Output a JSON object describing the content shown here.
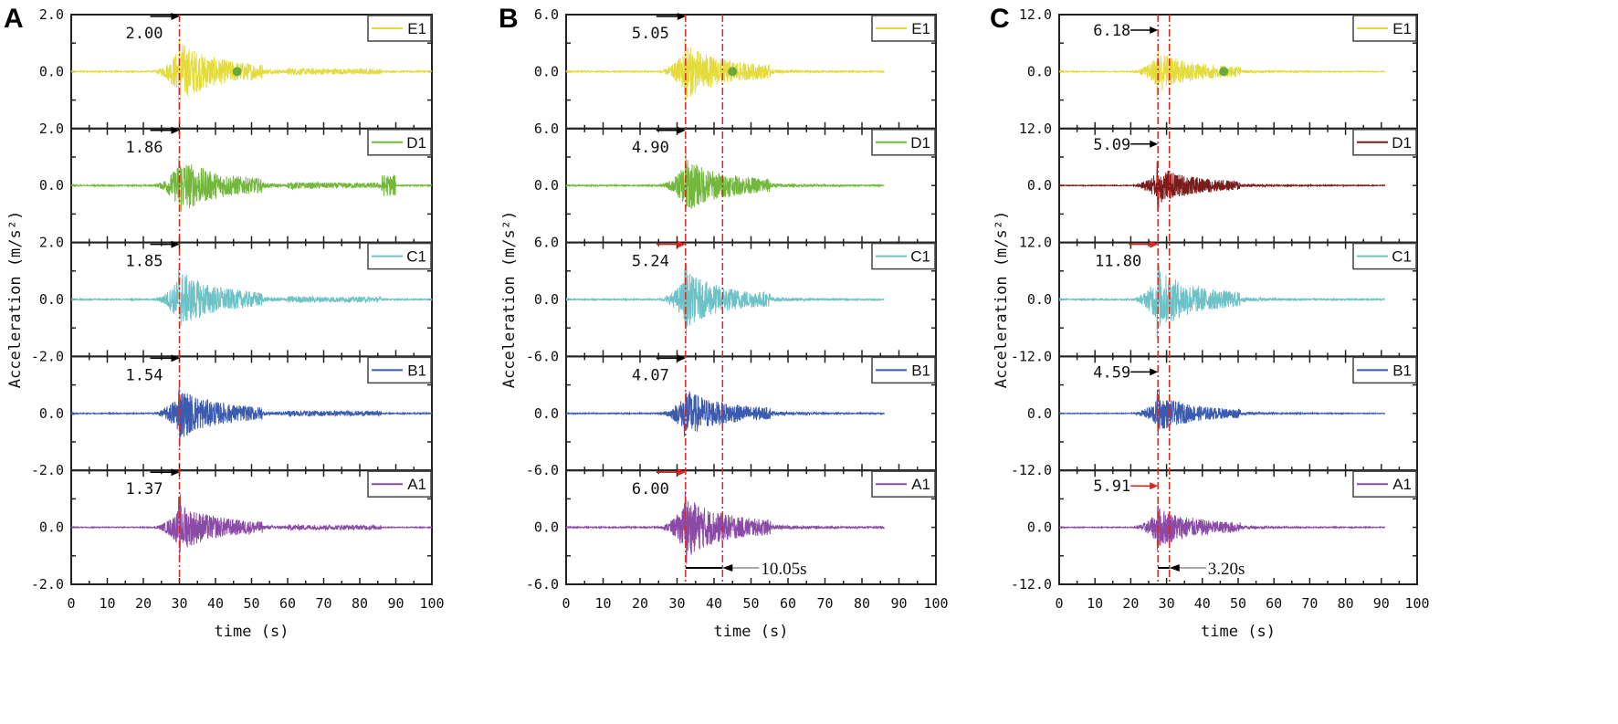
{
  "chart_data": [
    {
      "type": "line",
      "panel": "A",
      "xlabel": "time (s)",
      "ylabel": "Acceleration (m/s²)",
      "xlim": [
        0,
        100
      ],
      "xticks": [
        "0",
        "10",
        "20",
        "30",
        "40",
        "50",
        "60",
        "70",
        "80",
        "90",
        "100"
      ],
      "duration": 100,
      "arrival_lines": [
        30
      ],
      "duration_label": null,
      "ytick_labels": [
        "2.0",
        "0.0",
        "2.0",
        "0.0",
        "2.0",
        "0.0",
        "-2.0",
        "0.0",
        "-2.0",
        "0.0",
        "-2.0"
      ],
      "ymax": 2,
      "series": [
        {
          "name": "E1",
          "color": "#e3dc3c",
          "peak_label": "2.00",
          "peak": 2.0,
          "arrow_color": "#000000",
          "marker_time": 46
        },
        {
          "name": "D1",
          "color": "#72b83c",
          "peak_label": "1.86",
          "peak": 1.86,
          "arrow_color": "#000000"
        },
        {
          "name": "C1",
          "color": "#6cc2c6",
          "peak_label": "1.85",
          "peak": 1.85,
          "arrow_color": "#000000"
        },
        {
          "name": "B1",
          "color": "#3a5bb0",
          "peak_label": "1.54",
          "peak": 1.54,
          "arrow_color": "#000000"
        },
        {
          "name": "A1",
          "color": "#8a4aa6",
          "peak_label": "1.37",
          "peak": 1.37,
          "arrow_color": "#000000"
        }
      ]
    },
    {
      "type": "line",
      "panel": "B",
      "xlabel": "time (s)",
      "ylabel": "Acceleration (m/s²)",
      "xlim": [
        0,
        100
      ],
      "xticks": [
        "0",
        "10",
        "20",
        "30",
        "40",
        "50",
        "60",
        "70",
        "80",
        "90",
        "100"
      ],
      "duration": 86,
      "arrival_lines": [
        32.3,
        42.3
      ],
      "duration_label": "10.05s",
      "ytick_labels": [
        "6.0",
        "0.0",
        "6.0",
        "0.0",
        "6.0",
        "0.0",
        "-6.0",
        "0.0",
        "-6.0",
        "0.0",
        "-6.0"
      ],
      "ymax": 6,
      "series": [
        {
          "name": "E1",
          "color": "#e3dc3c",
          "peak_label": "5.05",
          "peak": 5.05,
          "arrow_color": "#000000",
          "marker_time": 45
        },
        {
          "name": "D1",
          "color": "#72b83c",
          "peak_label": "4.90",
          "peak": 4.9,
          "arrow_color": "#000000"
        },
        {
          "name": "C1",
          "color": "#6cc2c6",
          "peak_label": "5.24",
          "peak": 5.24,
          "arrow_color": "#e0241c"
        },
        {
          "name": "B1",
          "color": "#3a5bb0",
          "peak_label": "4.07",
          "peak": 4.07,
          "arrow_color": "#000000"
        },
        {
          "name": "A1",
          "color": "#8a4aa6",
          "peak_label": "6.00",
          "peak": 6.0,
          "arrow_color": "#e0241c"
        }
      ]
    },
    {
      "type": "line",
      "panel": "C",
      "xlabel": "time (s)",
      "ylabel": "Acceleration (m/s²)",
      "xlim": [
        0,
        100
      ],
      "xticks": [
        "0",
        "10",
        "20",
        "30",
        "40",
        "50",
        "60",
        "70",
        "80",
        "90",
        "100"
      ],
      "duration": 91,
      "arrival_lines": [
        27.6,
        30.8
      ],
      "duration_label": "3.20s",
      "ytick_labels": [
        "12.0",
        "0.0",
        "12.0",
        "0.0",
        "12.0",
        "0.0",
        "-12.0",
        "0.0",
        "-12.0",
        "0.0",
        "-12.0"
      ],
      "ymax": 12,
      "series": [
        {
          "name": "E1",
          "color": "#e3dc3c",
          "peak_label": "6.18",
          "peak": 6.18,
          "arrow_color": "#000000",
          "marker_time": 46
        },
        {
          "name": "D1",
          "color": "#7a1c1c",
          "peak_label": "5.09",
          "peak": 5.09,
          "arrow_color": "#000000"
        },
        {
          "name": "C1",
          "color": "#6cc2c6",
          "peak_label": "11.80",
          "peak": 11.8,
          "arrow_color": "#e0241c"
        },
        {
          "name": "B1",
          "color": "#3a5bb0",
          "peak_label": "4.59",
          "peak": 4.59,
          "arrow_color": "#000000"
        },
        {
          "name": "A1",
          "color": "#8a4aa6",
          "peak_label": "5.91",
          "peak": 5.91,
          "arrow_color": "#e0241c"
        }
      ]
    }
  ],
  "colors": {
    "marker": "#6aa83a",
    "arrival_line": "#e0241c"
  }
}
